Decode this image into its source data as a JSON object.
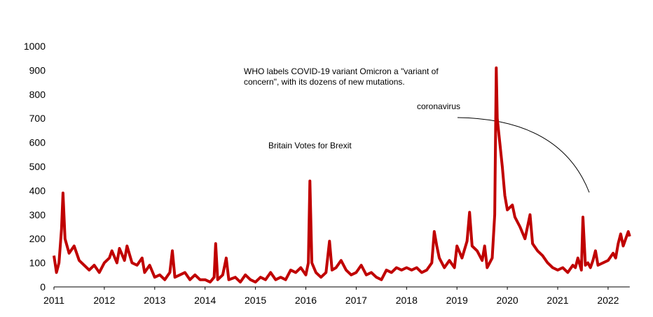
{
  "chart_data": {
    "type": "line",
    "x": [
      2011.0,
      2011.05,
      2011.1,
      2011.15,
      2011.18,
      2011.22,
      2011.3,
      2011.4,
      2011.5,
      2011.6,
      2011.7,
      2011.8,
      2011.9,
      2012.0,
      2012.1,
      2012.15,
      2012.25,
      2012.3,
      2012.4,
      2012.45,
      2012.55,
      2012.65,
      2012.75,
      2012.8,
      2012.9,
      2013.0,
      2013.1,
      2013.2,
      2013.3,
      2013.35,
      2013.4,
      2013.5,
      2013.6,
      2013.7,
      2013.8,
      2013.9,
      2014.0,
      2014.1,
      2014.18,
      2014.21,
      2014.25,
      2014.35,
      2014.42,
      2014.47,
      2014.6,
      2014.7,
      2014.8,
      2014.9,
      2015.0,
      2015.1,
      2015.2,
      2015.3,
      2015.4,
      2015.5,
      2015.6,
      2015.7,
      2015.8,
      2015.9,
      2016.0,
      2016.05,
      2016.08,
      2016.12,
      2016.2,
      2016.3,
      2016.4,
      2016.47,
      2016.52,
      2016.6,
      2016.7,
      2016.8,
      2016.9,
      2017.0,
      2017.1,
      2017.2,
      2017.3,
      2017.4,
      2017.5,
      2017.6,
      2017.7,
      2017.8,
      2017.9,
      2018.0,
      2018.1,
      2018.2,
      2018.3,
      2018.4,
      2018.5,
      2018.55,
      2018.6,
      2018.65,
      2018.75,
      2018.85,
      2018.95,
      2019.0,
      2019.1,
      2019.2,
      2019.25,
      2019.3,
      2019.4,
      2019.5,
      2019.55,
      2019.6,
      2019.7,
      2019.75,
      2019.78,
      2019.8,
      2019.85,
      2019.9,
      2019.95,
      2020.0,
      2020.1,
      2020.15,
      2020.25,
      2020.35,
      2020.45,
      2020.5,
      2020.6,
      2020.7,
      2020.8,
      2020.9,
      2021.0,
      2021.1,
      2021.2,
      2021.3,
      2021.35,
      2021.4,
      2021.47,
      2021.5,
      2021.55,
      2021.6,
      2021.65,
      2021.7,
      2021.75,
      2021.8,
      2021.9,
      2022.0,
      2022.1,
      2022.15,
      2022.2,
      2022.25,
      2022.3,
      2022.35,
      2022.4,
      2022.43
    ],
    "values": [
      130,
      60,
      100,
      240,
      390,
      200,
      140,
      170,
      110,
      90,
      70,
      90,
      60,
      100,
      120,
      150,
      100,
      160,
      110,
      170,
      100,
      90,
      120,
      60,
      90,
      40,
      50,
      30,
      60,
      150,
      40,
      50,
      60,
      30,
      50,
      30,
      30,
      20,
      40,
      180,
      30,
      50,
      120,
      30,
      40,
      20,
      50,
      30,
      20,
      40,
      30,
      60,
      30,
      40,
      30,
      70,
      60,
      80,
      50,
      100,
      440,
      100,
      60,
      40,
      60,
      190,
      70,
      80,
      110,
      70,
      50,
      60,
      90,
      50,
      60,
      40,
      30,
      70,
      60,
      80,
      70,
      80,
      70,
      80,
      60,
      70,
      100,
      230,
      170,
      120,
      80,
      110,
      80,
      170,
      120,
      190,
      310,
      170,
      150,
      110,
      170,
      80,
      120,
      300,
      910,
      700,
      600,
      500,
      380,
      320,
      340,
      290,
      250,
      200,
      300,
      180,
      150,
      130,
      100,
      80,
      70,
      80,
      60,
      90,
      80,
      120,
      70,
      290,
      90,
      100,
      80,
      110,
      150,
      90,
      100,
      110,
      140,
      120,
      180,
      220,
      170,
      200,
      230,
      210
    ],
    "color": "#c00000",
    "xlim": [
      2011,
      2022.43
    ],
    "xticks": [
      2011,
      2012,
      2013,
      2014,
      2015,
      2016,
      2017,
      2018,
      2019,
      2020,
      2021,
      2022
    ],
    "ylim": [
      0,
      1000
    ],
    "yticks": [
      0,
      100,
      200,
      300,
      400,
      500,
      600,
      700,
      800,
      900,
      1000
    ],
    "annotations": [
      {
        "lines": [
          "WHO labels COVID-19 variant Omicron a \"variant of",
          "concern\", with its dozens of new mutations."
        ]
      },
      {
        "lines": [
          "coronavirus"
        ]
      },
      {
        "lines": [
          "Britain Votes for Brexit"
        ]
      }
    ]
  }
}
